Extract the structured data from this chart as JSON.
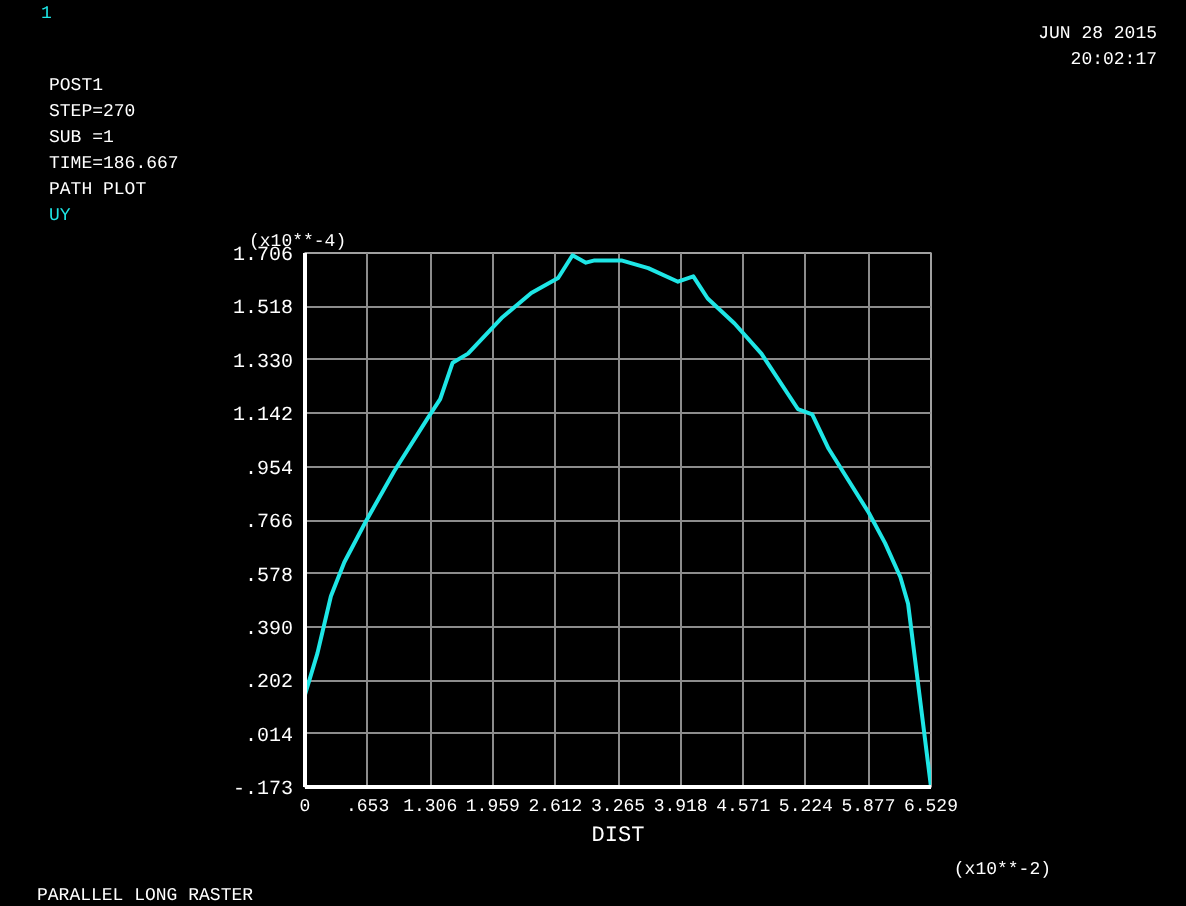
{
  "chart_data": {
    "type": "line",
    "xlabel": "DIST",
    "ylabel": "(x10**-4)",
    "annotations": [
      "1",
      "POST1",
      "STEP=270",
      "SUB =1",
      "TIME=186.667",
      "PATH PLOT",
      "JUN 28 2015",
      "20:02:17",
      "(x10**-2)",
      "PARALLEL LONG RASTER"
    ],
    "series": [
      {
        "name": "UY",
        "color": "#1ee6e6",
        "x": [
          0,
          0.13,
          0.27,
          0.41,
          0.64,
          0.93,
          1.28,
          1.41,
          1.54,
          1.7,
          2.05,
          2.36,
          2.64,
          2.79,
          2.93,
          3.02,
          3.3,
          3.58,
          3.89,
          4.05,
          4.2,
          4.48,
          4.76,
          5.14,
          5.29,
          5.46,
          5.88,
          6.05,
          6.21,
          6.29,
          6.529
        ],
        "values": [
          0.152,
          0.298,
          0.498,
          0.618,
          0.765,
          0.938,
          1.125,
          1.192,
          1.32,
          1.352,
          1.477,
          1.565,
          1.618,
          1.698,
          1.672,
          1.68,
          1.68,
          1.653,
          1.605,
          1.624,
          1.546,
          1.458,
          1.352,
          1.157,
          1.138,
          1.018,
          0.792,
          0.685,
          0.565,
          0.472,
          -0.173
        ]
      }
    ],
    "xlim": [
      0,
      6.529
    ],
    "ylim": [
      -0.173,
      1.706
    ],
    "xticks": [
      0,
      {
        "value": 0.653,
        "label": ".653"
      },
      1.306,
      1.959,
      2.612,
      3.265,
      3.918,
      4.571,
      5.224,
      5.877,
      6.529
    ],
    "yticks": [
      {
        "value": -0.173,
        "label": "-.173"
      },
      {
        "value": 0.014,
        "label": ".014"
      },
      {
        "value": 0.202,
        "label": ".202"
      },
      {
        "value": 0.39,
        "label": ".390"
      },
      {
        "value": 0.578,
        "label": ".578"
      },
      {
        "value": 0.766,
        "label": ".766"
      },
      {
        "value": 0.954,
        "label": ".954"
      },
      1.142,
      {
        "value": 1.33,
        "label": "1.330"
      },
      1.518,
      1.706
    ],
    "grid": true,
    "marker": "none",
    "line_style": "solid"
  }
}
